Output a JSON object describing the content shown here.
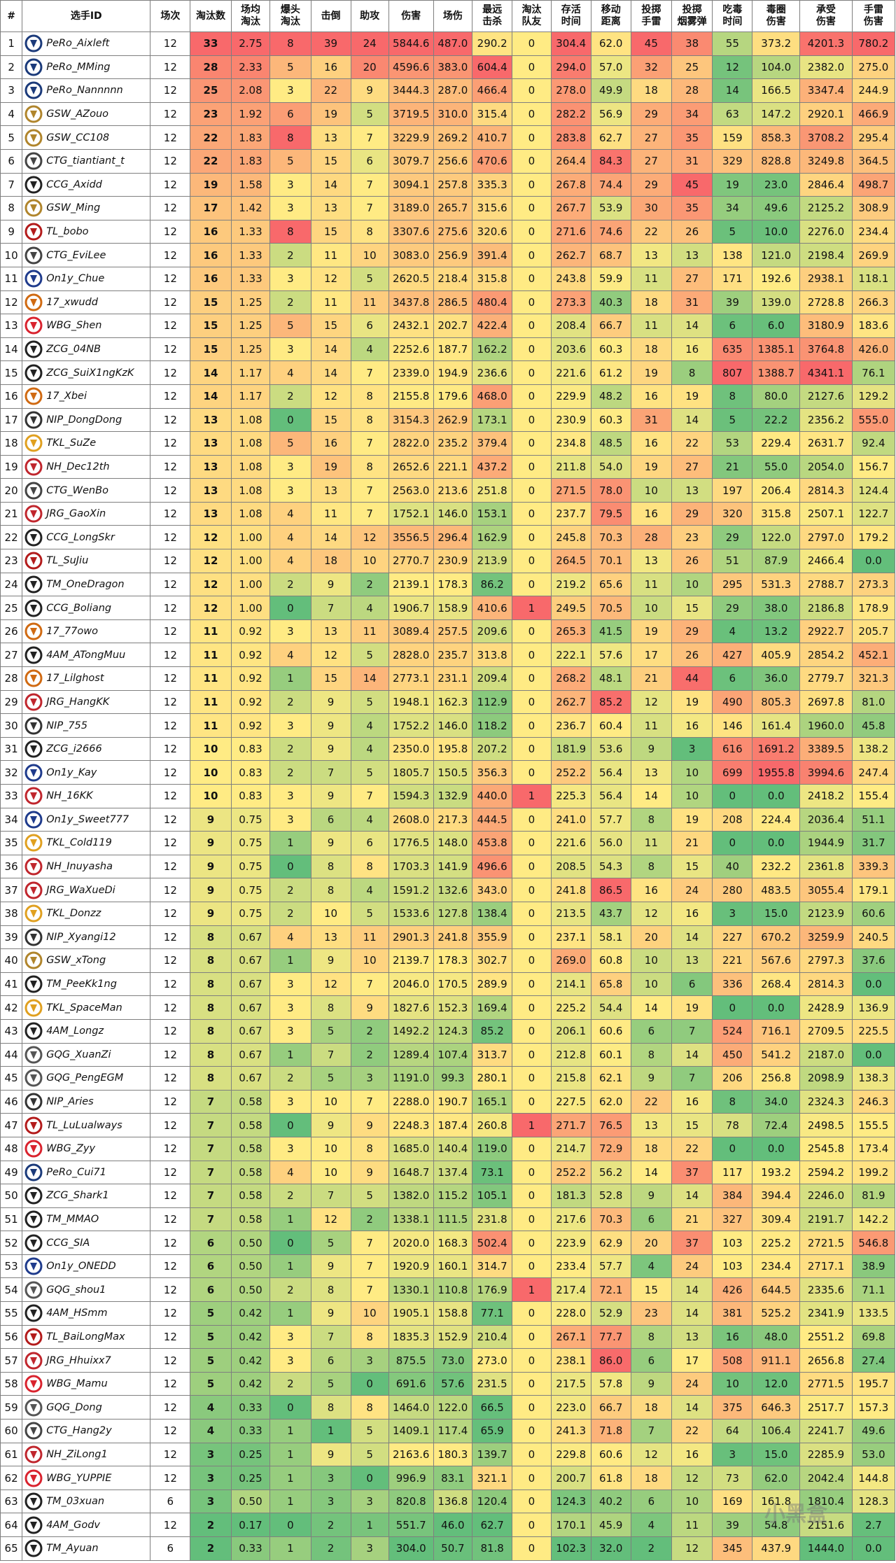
{
  "headers": [
    "#",
    "选手ID",
    "场次",
    "淘汰数",
    "场均\n淘汰",
    "爆头\n淘汰",
    "击倒",
    "助攻",
    "伤害",
    "场伤",
    "最远\n击杀",
    "淘汰\n队友",
    "存活\n时间",
    "移动\n距离",
    "投掷\n手雷",
    "投掷\n烟雾弹",
    "吃毒\n时间",
    "毒圈\n伤害",
    "承受\n伤害",
    "手雷\n伤害"
  ],
  "palette": {
    "min": "#63be7b",
    "mid": "#ffeb84",
    "max": "#f8696b"
  },
  "watermark": "小黑盒",
  "rows": [
    [
      "1",
      "PeRo_Aixleft",
      "12",
      "33",
      "2.75",
      "8",
      "39",
      "24",
      "5844.6",
      "487.0",
      "290.2",
      "0",
      "304.4",
      "62.0",
      "45",
      "38",
      "55",
      "373.2",
      "4201.3",
      "780.2"
    ],
    [
      "2",
      "PeRo_MMing",
      "12",
      "28",
      "2.33",
      "5",
      "16",
      "20",
      "4596.6",
      "383.0",
      "604.4",
      "0",
      "294.0",
      "57.0",
      "32",
      "25",
      "12",
      "104.0",
      "2382.0",
      "275.0"
    ],
    [
      "3",
      "PeRo_Nannnnn",
      "12",
      "25",
      "2.08",
      "3",
      "22",
      "9",
      "3444.3",
      "287.0",
      "466.4",
      "0",
      "278.0",
      "49.9",
      "18",
      "28",
      "14",
      "166.5",
      "3347.4",
      "244.9"
    ],
    [
      "4",
      "GSW_AZouo",
      "12",
      "23",
      "1.92",
      "6",
      "19",
      "5",
      "3719.5",
      "310.0",
      "315.4",
      "0",
      "282.2",
      "56.9",
      "29",
      "34",
      "63",
      "147.2",
      "2920.1",
      "466.9"
    ],
    [
      "5",
      "GSW_CC108",
      "12",
      "22",
      "1.83",
      "8",
      "13",
      "7",
      "3229.9",
      "269.2",
      "410.7",
      "0",
      "283.8",
      "62.7",
      "27",
      "35",
      "159",
      "858.3",
      "3708.2",
      "295.4"
    ],
    [
      "6",
      "CTG_tiantiant_t",
      "12",
      "22",
      "1.83",
      "5",
      "15",
      "6",
      "3079.7",
      "256.6",
      "470.6",
      "0",
      "264.4",
      "84.3",
      "27",
      "31",
      "329",
      "828.8",
      "3249.8",
      "364.5"
    ],
    [
      "7",
      "CCG_Axidd",
      "12",
      "19",
      "1.58",
      "3",
      "14",
      "7",
      "3094.1",
      "257.8",
      "335.3",
      "0",
      "267.8",
      "74.4",
      "29",
      "45",
      "19",
      "23.0",
      "2846.4",
      "498.7"
    ],
    [
      "8",
      "GSW_Ming",
      "12",
      "17",
      "1.42",
      "3",
      "13",
      "7",
      "3189.0",
      "265.7",
      "315.6",
      "0",
      "267.7",
      "53.9",
      "30",
      "35",
      "34",
      "49.6",
      "2125.2",
      "308.9"
    ],
    [
      "9",
      "TL_bobo",
      "12",
      "16",
      "1.33",
      "8",
      "15",
      "8",
      "3307.6",
      "275.6",
      "320.6",
      "0",
      "271.6",
      "74.6",
      "22",
      "26",
      "5",
      "10.0",
      "2276.0",
      "234.4"
    ],
    [
      "10",
      "CTG_EviLee",
      "12",
      "16",
      "1.33",
      "2",
      "11",
      "10",
      "3083.0",
      "256.9",
      "391.4",
      "0",
      "262.7",
      "68.7",
      "13",
      "13",
      "138",
      "121.0",
      "2198.4",
      "269.9"
    ],
    [
      "11",
      "On1y_Chue",
      "12",
      "16",
      "1.33",
      "3",
      "12",
      "5",
      "2620.5",
      "218.4",
      "315.8",
      "0",
      "243.8",
      "59.9",
      "11",
      "27",
      "171",
      "192.6",
      "2938.1",
      "118.1"
    ],
    [
      "12",
      "17_xwudd",
      "12",
      "15",
      "1.25",
      "2",
      "11",
      "11",
      "3437.8",
      "286.5",
      "480.4",
      "0",
      "273.3",
      "40.3",
      "18",
      "31",
      "39",
      "139.0",
      "2728.8",
      "266.3"
    ],
    [
      "13",
      "WBG_Shen",
      "12",
      "15",
      "1.25",
      "5",
      "15",
      "6",
      "2432.1",
      "202.7",
      "422.4",
      "0",
      "208.4",
      "66.7",
      "11",
      "14",
      "6",
      "6.0",
      "3180.9",
      "183.6"
    ],
    [
      "14",
      "ZCG_04NB",
      "12",
      "15",
      "1.25",
      "3",
      "14",
      "4",
      "2252.6",
      "187.7",
      "162.2",
      "0",
      "203.6",
      "60.3",
      "18",
      "16",
      "635",
      "1385.1",
      "3764.8",
      "426.0"
    ],
    [
      "15",
      "ZCG_SuiX1ngKzK",
      "12",
      "14",
      "1.17",
      "4",
      "14",
      "7",
      "2339.0",
      "194.9",
      "236.6",
      "0",
      "221.6",
      "61.2",
      "19",
      "8",
      "807",
      "1388.7",
      "4341.1",
      "76.1"
    ],
    [
      "16",
      "17_Xbei",
      "12",
      "14",
      "1.17",
      "2",
      "12",
      "8",
      "2155.8",
      "179.6",
      "468.0",
      "0",
      "229.9",
      "48.2",
      "16",
      "19",
      "8",
      "80.0",
      "2127.6",
      "129.2"
    ],
    [
      "17",
      "NIP_DongDong",
      "12",
      "13",
      "1.08",
      "0",
      "15",
      "8",
      "3154.3",
      "262.9",
      "173.1",
      "0",
      "230.9",
      "60.3",
      "31",
      "14",
      "5",
      "22.2",
      "2356.2",
      "555.0"
    ],
    [
      "18",
      "TKL_SuZe",
      "12",
      "13",
      "1.08",
      "5",
      "16",
      "7",
      "2822.0",
      "235.2",
      "379.4",
      "0",
      "234.8",
      "48.5",
      "16",
      "22",
      "53",
      "229.4",
      "2631.7",
      "92.4"
    ],
    [
      "19",
      "NH_Dec12th",
      "12",
      "13",
      "1.08",
      "3",
      "19",
      "8",
      "2652.6",
      "221.1",
      "437.2",
      "0",
      "211.8",
      "54.0",
      "19",
      "27",
      "21",
      "55.0",
      "2054.0",
      "156.7"
    ],
    [
      "20",
      "CTG_WenBo",
      "12",
      "13",
      "1.08",
      "3",
      "13",
      "7",
      "2563.0",
      "213.6",
      "251.8",
      "0",
      "271.5",
      "78.0",
      "10",
      "13",
      "197",
      "206.4",
      "2814.3",
      "124.4"
    ],
    [
      "21",
      "JRG_GaoXin",
      "12",
      "13",
      "1.08",
      "4",
      "11",
      "7",
      "1752.1",
      "146.0",
      "153.1",
      "0",
      "237.7",
      "79.5",
      "16",
      "29",
      "320",
      "315.8",
      "2507.1",
      "122.7"
    ],
    [
      "22",
      "CCG_LongSkr",
      "12",
      "12",
      "1.00",
      "4",
      "14",
      "12",
      "3556.5",
      "296.4",
      "162.9",
      "0",
      "245.8",
      "70.3",
      "28",
      "23",
      "29",
      "122.0",
      "2797.0",
      "179.2"
    ],
    [
      "23",
      "TL_SuJiu",
      "12",
      "12",
      "1.00",
      "4",
      "18",
      "10",
      "2770.7",
      "230.9",
      "213.9",
      "0",
      "264.5",
      "70.1",
      "13",
      "26",
      "51",
      "87.9",
      "2466.4",
      "0.0"
    ],
    [
      "24",
      "TM_OneDragon",
      "12",
      "12",
      "1.00",
      "2",
      "9",
      "2",
      "2139.1",
      "178.3",
      "86.2",
      "0",
      "219.2",
      "65.6",
      "11",
      "10",
      "295",
      "531.3",
      "2788.7",
      "273.3"
    ],
    [
      "25",
      "CCG_Boliang",
      "12",
      "12",
      "1.00",
      "0",
      "7",
      "4",
      "1906.7",
      "158.9",
      "410.6",
      "1",
      "249.5",
      "70.5",
      "10",
      "15",
      "29",
      "38.0",
      "2186.8",
      "178.9"
    ],
    [
      "26",
      "17_77owo",
      "12",
      "11",
      "0.92",
      "3",
      "13",
      "11",
      "3089.4",
      "257.5",
      "209.6",
      "0",
      "265.3",
      "41.5",
      "19",
      "29",
      "4",
      "13.2",
      "2922.7",
      "205.7"
    ],
    [
      "27",
      "4AM_ATongMuu",
      "12",
      "11",
      "0.92",
      "4",
      "12",
      "5",
      "2828.0",
      "235.7",
      "313.8",
      "0",
      "222.1",
      "57.6",
      "17",
      "26",
      "427",
      "405.9",
      "2854.2",
      "452.1"
    ],
    [
      "28",
      "17_Lilghost",
      "12",
      "11",
      "0.92",
      "1",
      "15",
      "14",
      "2773.1",
      "231.1",
      "209.4",
      "0",
      "268.2",
      "48.1",
      "21",
      "44",
      "6",
      "36.0",
      "2779.7",
      "321.3"
    ],
    [
      "29",
      "JRG_HangKK",
      "12",
      "11",
      "0.92",
      "2",
      "9",
      "5",
      "1948.1",
      "162.3",
      "112.9",
      "0",
      "262.7",
      "85.2",
      "12",
      "19",
      "490",
      "805.3",
      "2697.8",
      "81.0"
    ],
    [
      "30",
      "NIP_755",
      "12",
      "11",
      "0.92",
      "3",
      "9",
      "4",
      "1752.2",
      "146.0",
      "118.2",
      "0",
      "236.7",
      "60.4",
      "11",
      "16",
      "146",
      "161.4",
      "1960.0",
      "45.8"
    ],
    [
      "31",
      "ZCG_i2666",
      "12",
      "10",
      "0.83",
      "2",
      "9",
      "4",
      "2350.0",
      "195.8",
      "207.2",
      "0",
      "181.9",
      "53.6",
      "9",
      "3",
      "616",
      "1691.2",
      "3389.5",
      "138.2"
    ],
    [
      "32",
      "On1y_Kay",
      "12",
      "10",
      "0.83",
      "2",
      "7",
      "5",
      "1805.7",
      "150.5",
      "356.3",
      "0",
      "252.2",
      "56.4",
      "13",
      "10",
      "699",
      "1955.8",
      "3994.6",
      "247.4"
    ],
    [
      "33",
      "NH_16KK",
      "12",
      "10",
      "0.83",
      "3",
      "9",
      "7",
      "1594.3",
      "132.9",
      "440.0",
      "1",
      "225.3",
      "56.4",
      "14",
      "10",
      "0",
      "0.0",
      "2418.2",
      "155.4"
    ],
    [
      "34",
      "On1y_Sweet777",
      "12",
      "9",
      "0.75",
      "3",
      "6",
      "4",
      "2608.0",
      "217.3",
      "444.5",
      "0",
      "241.0",
      "57.7",
      "8",
      "19",
      "208",
      "224.4",
      "2036.4",
      "51.1"
    ],
    [
      "35",
      "TKL_Cold119",
      "12",
      "9",
      "0.75",
      "1",
      "9",
      "6",
      "1776.5",
      "148.0",
      "453.8",
      "0",
      "221.6",
      "56.0",
      "11",
      "21",
      "0",
      "0.0",
      "1944.9",
      "31.7"
    ],
    [
      "36",
      "NH_Inuyasha",
      "12",
      "9",
      "0.75",
      "0",
      "8",
      "8",
      "1703.3",
      "141.9",
      "496.6",
      "0",
      "208.5",
      "54.3",
      "8",
      "15",
      "40",
      "232.2",
      "2361.8",
      "339.3"
    ],
    [
      "37",
      "JRG_WaXueDi",
      "12",
      "9",
      "0.75",
      "2",
      "8",
      "4",
      "1591.2",
      "132.6",
      "343.0",
      "0",
      "241.8",
      "86.5",
      "16",
      "24",
      "280",
      "483.5",
      "3055.4",
      "179.1"
    ],
    [
      "38",
      "TKL_Donzz",
      "12",
      "9",
      "0.75",
      "2",
      "10",
      "5",
      "1533.6",
      "127.8",
      "138.4",
      "0",
      "213.5",
      "43.7",
      "12",
      "16",
      "3",
      "15.0",
      "2123.9",
      "60.6"
    ],
    [
      "39",
      "NIP_Xyangi12",
      "12",
      "8",
      "0.67",
      "4",
      "13",
      "11",
      "2901.3",
      "241.8",
      "355.9",
      "0",
      "237.1",
      "58.1",
      "20",
      "14",
      "227",
      "670.2",
      "3259.9",
      "240.5"
    ],
    [
      "40",
      "GSW_xTong",
      "12",
      "8",
      "0.67",
      "1",
      "9",
      "10",
      "2139.7",
      "178.3",
      "302.7",
      "0",
      "269.0",
      "60.8",
      "10",
      "13",
      "221",
      "567.6",
      "2797.3",
      "37.6"
    ],
    [
      "41",
      "TM_PeeKk1ng",
      "12",
      "8",
      "0.67",
      "3",
      "12",
      "7",
      "2046.0",
      "170.5",
      "289.9",
      "0",
      "214.1",
      "65.8",
      "10",
      "6",
      "336",
      "268.4",
      "2814.3",
      "0.0"
    ],
    [
      "42",
      "TKL_SpaceMan",
      "12",
      "8",
      "0.67",
      "3",
      "8",
      "9",
      "1827.6",
      "152.3",
      "169.4",
      "0",
      "225.2",
      "54.4",
      "14",
      "19",
      "0",
      "0.0",
      "2428.9",
      "136.9"
    ],
    [
      "43",
      "4AM_Longz",
      "12",
      "8",
      "0.67",
      "3",
      "5",
      "2",
      "1492.2",
      "124.3",
      "85.2",
      "0",
      "206.1",
      "60.6",
      "6",
      "7",
      "524",
      "716.1",
      "2709.5",
      "225.5"
    ],
    [
      "44",
      "GQG_XuanZi",
      "12",
      "8",
      "0.67",
      "1",
      "7",
      "2",
      "1289.4",
      "107.4",
      "313.7",
      "0",
      "212.8",
      "60.1",
      "8",
      "14",
      "450",
      "541.2",
      "2187.0",
      "0.0"
    ],
    [
      "45",
      "GQG_PengEGM",
      "12",
      "8",
      "0.67",
      "2",
      "5",
      "3",
      "1191.0",
      "99.3",
      "280.1",
      "0",
      "215.8",
      "62.1",
      "9",
      "7",
      "206",
      "256.8",
      "2098.9",
      "138.3"
    ],
    [
      "46",
      "NIP_Aries",
      "12",
      "7",
      "0.58",
      "3",
      "10",
      "7",
      "2288.0",
      "190.7",
      "165.1",
      "0",
      "227.5",
      "62.0",
      "22",
      "16",
      "8",
      "34.0",
      "2324.3",
      "246.3"
    ],
    [
      "47",
      "TL_LuLualways",
      "12",
      "7",
      "0.58",
      "0",
      "9",
      "9",
      "2248.3",
      "187.4",
      "260.8",
      "1",
      "271.7",
      "76.5",
      "13",
      "15",
      "78",
      "72.4",
      "2498.5",
      "155.5"
    ],
    [
      "48",
      "WBG_Zyy",
      "12",
      "7",
      "0.58",
      "3",
      "10",
      "8",
      "1685.0",
      "140.4",
      "119.0",
      "0",
      "214.7",
      "72.9",
      "18",
      "22",
      "0",
      "0.0",
      "2545.8",
      "173.4"
    ],
    [
      "49",
      "PeRo_Cui71",
      "12",
      "7",
      "0.58",
      "4",
      "10",
      "9",
      "1648.7",
      "137.4",
      "73.1",
      "0",
      "252.2",
      "56.2",
      "14",
      "37",
      "117",
      "193.2",
      "2594.2",
      "199.2"
    ],
    [
      "50",
      "ZCG_Shark1",
      "12",
      "7",
      "0.58",
      "2",
      "7",
      "5",
      "1382.0",
      "115.2",
      "105.1",
      "0",
      "181.3",
      "52.8",
      "9",
      "14",
      "384",
      "394.4",
      "2246.0",
      "81.9"
    ],
    [
      "51",
      "TM_MMAO",
      "12",
      "7",
      "0.58",
      "1",
      "12",
      "2",
      "1338.1",
      "111.5",
      "231.8",
      "0",
      "217.6",
      "70.3",
      "6",
      "21",
      "327",
      "309.4",
      "2191.7",
      "142.2"
    ],
    [
      "52",
      "CCG_SIA",
      "12",
      "6",
      "0.50",
      "0",
      "5",
      "7",
      "2020.0",
      "168.3",
      "502.4",
      "0",
      "223.9",
      "62.9",
      "20",
      "37",
      "103",
      "225.2",
      "2721.5",
      "546.8"
    ],
    [
      "53",
      "On1y_ONEDD",
      "12",
      "6",
      "0.50",
      "1",
      "9",
      "7",
      "1920.9",
      "160.1",
      "314.7",
      "0",
      "233.4",
      "57.7",
      "4",
      "24",
      "103",
      "234.4",
      "2717.1",
      "38.9"
    ],
    [
      "54",
      "GQG_shou1",
      "12",
      "6",
      "0.50",
      "2",
      "8",
      "7",
      "1330.1",
      "110.8",
      "176.9",
      "1",
      "217.4",
      "72.1",
      "15",
      "14",
      "426",
      "644.5",
      "2335.6",
      "71.1"
    ],
    [
      "55",
      "4AM_HSmm",
      "12",
      "5",
      "0.42",
      "1",
      "9",
      "10",
      "1905.1",
      "158.8",
      "77.1",
      "0",
      "228.0",
      "52.9",
      "23",
      "14",
      "381",
      "525.2",
      "2341.9",
      "133.5"
    ],
    [
      "56",
      "TL_BaiLongMax",
      "12",
      "5",
      "0.42",
      "3",
      "7",
      "8",
      "1835.3",
      "152.9",
      "210.4",
      "0",
      "267.1",
      "77.7",
      "8",
      "13",
      "16",
      "48.0",
      "2551.2",
      "69.8"
    ],
    [
      "57",
      "JRG_Hhuixx7",
      "12",
      "5",
      "0.42",
      "3",
      "6",
      "3",
      "875.5",
      "73.0",
      "273.0",
      "0",
      "238.1",
      "86.0",
      "6",
      "17",
      "508",
      "911.1",
      "2656.8",
      "27.4"
    ],
    [
      "58",
      "WBG_Mamu",
      "12",
      "5",
      "0.42",
      "2",
      "5",
      "0",
      "691.6",
      "57.6",
      "231.5",
      "0",
      "217.5",
      "57.8",
      "9",
      "24",
      "10",
      "12.0",
      "2771.5",
      "195.7"
    ],
    [
      "59",
      "GQG_Dong",
      "12",
      "4",
      "0.33",
      "0",
      "8",
      "8",
      "1464.0",
      "122.0",
      "66.5",
      "0",
      "223.0",
      "66.7",
      "18",
      "14",
      "375",
      "646.3",
      "2517.7",
      "157.3"
    ],
    [
      "60",
      "CTG_Hang2y",
      "12",
      "4",
      "0.33",
      "1",
      "1",
      "5",
      "1409.1",
      "117.4",
      "65.9",
      "0",
      "241.3",
      "71.8",
      "7",
      "22",
      "64",
      "106.4",
      "2241.7",
      "49.6"
    ],
    [
      "61",
      "NH_ZiLong1",
      "12",
      "3",
      "0.25",
      "1",
      "9",
      "5",
      "2163.6",
      "180.3",
      "139.7",
      "0",
      "229.8",
      "60.6",
      "12",
      "16",
      "3",
      "15.0",
      "2285.9",
      "53.0"
    ],
    [
      "62",
      "WBG_YUPPIE",
      "12",
      "3",
      "0.25",
      "1",
      "3",
      "0",
      "996.9",
      "83.1",
      "321.1",
      "0",
      "200.7",
      "61.8",
      "18",
      "12",
      "73",
      "62.0",
      "2042.4",
      "144.8"
    ],
    [
      "63",
      "TM_03xuan",
      "6",
      "3",
      "0.50",
      "1",
      "3",
      "3",
      "820.8",
      "136.8",
      "120.4",
      "0",
      "124.3",
      "40.2",
      "6",
      "10",
      "169",
      "161.8",
      "1810.4",
      "128.3"
    ],
    [
      "64",
      "4AM_Godv",
      "12",
      "2",
      "0.17",
      "0",
      "2",
      "1",
      "551.7",
      "46.0",
      "62.7",
      "0",
      "170.1",
      "45.9",
      "4",
      "11",
      "39",
      "54.8",
      "2151.6",
      "2.7"
    ],
    [
      "65",
      "TM_Ayuan",
      "6",
      "2",
      "0.33",
      "1",
      "2",
      "3",
      "304.0",
      "50.7",
      "81.8",
      "0",
      "102.3",
      "32.0",
      "2",
      "12",
      "345",
      "437.9",
      "1444.0",
      "0.0"
    ]
  ]
}
